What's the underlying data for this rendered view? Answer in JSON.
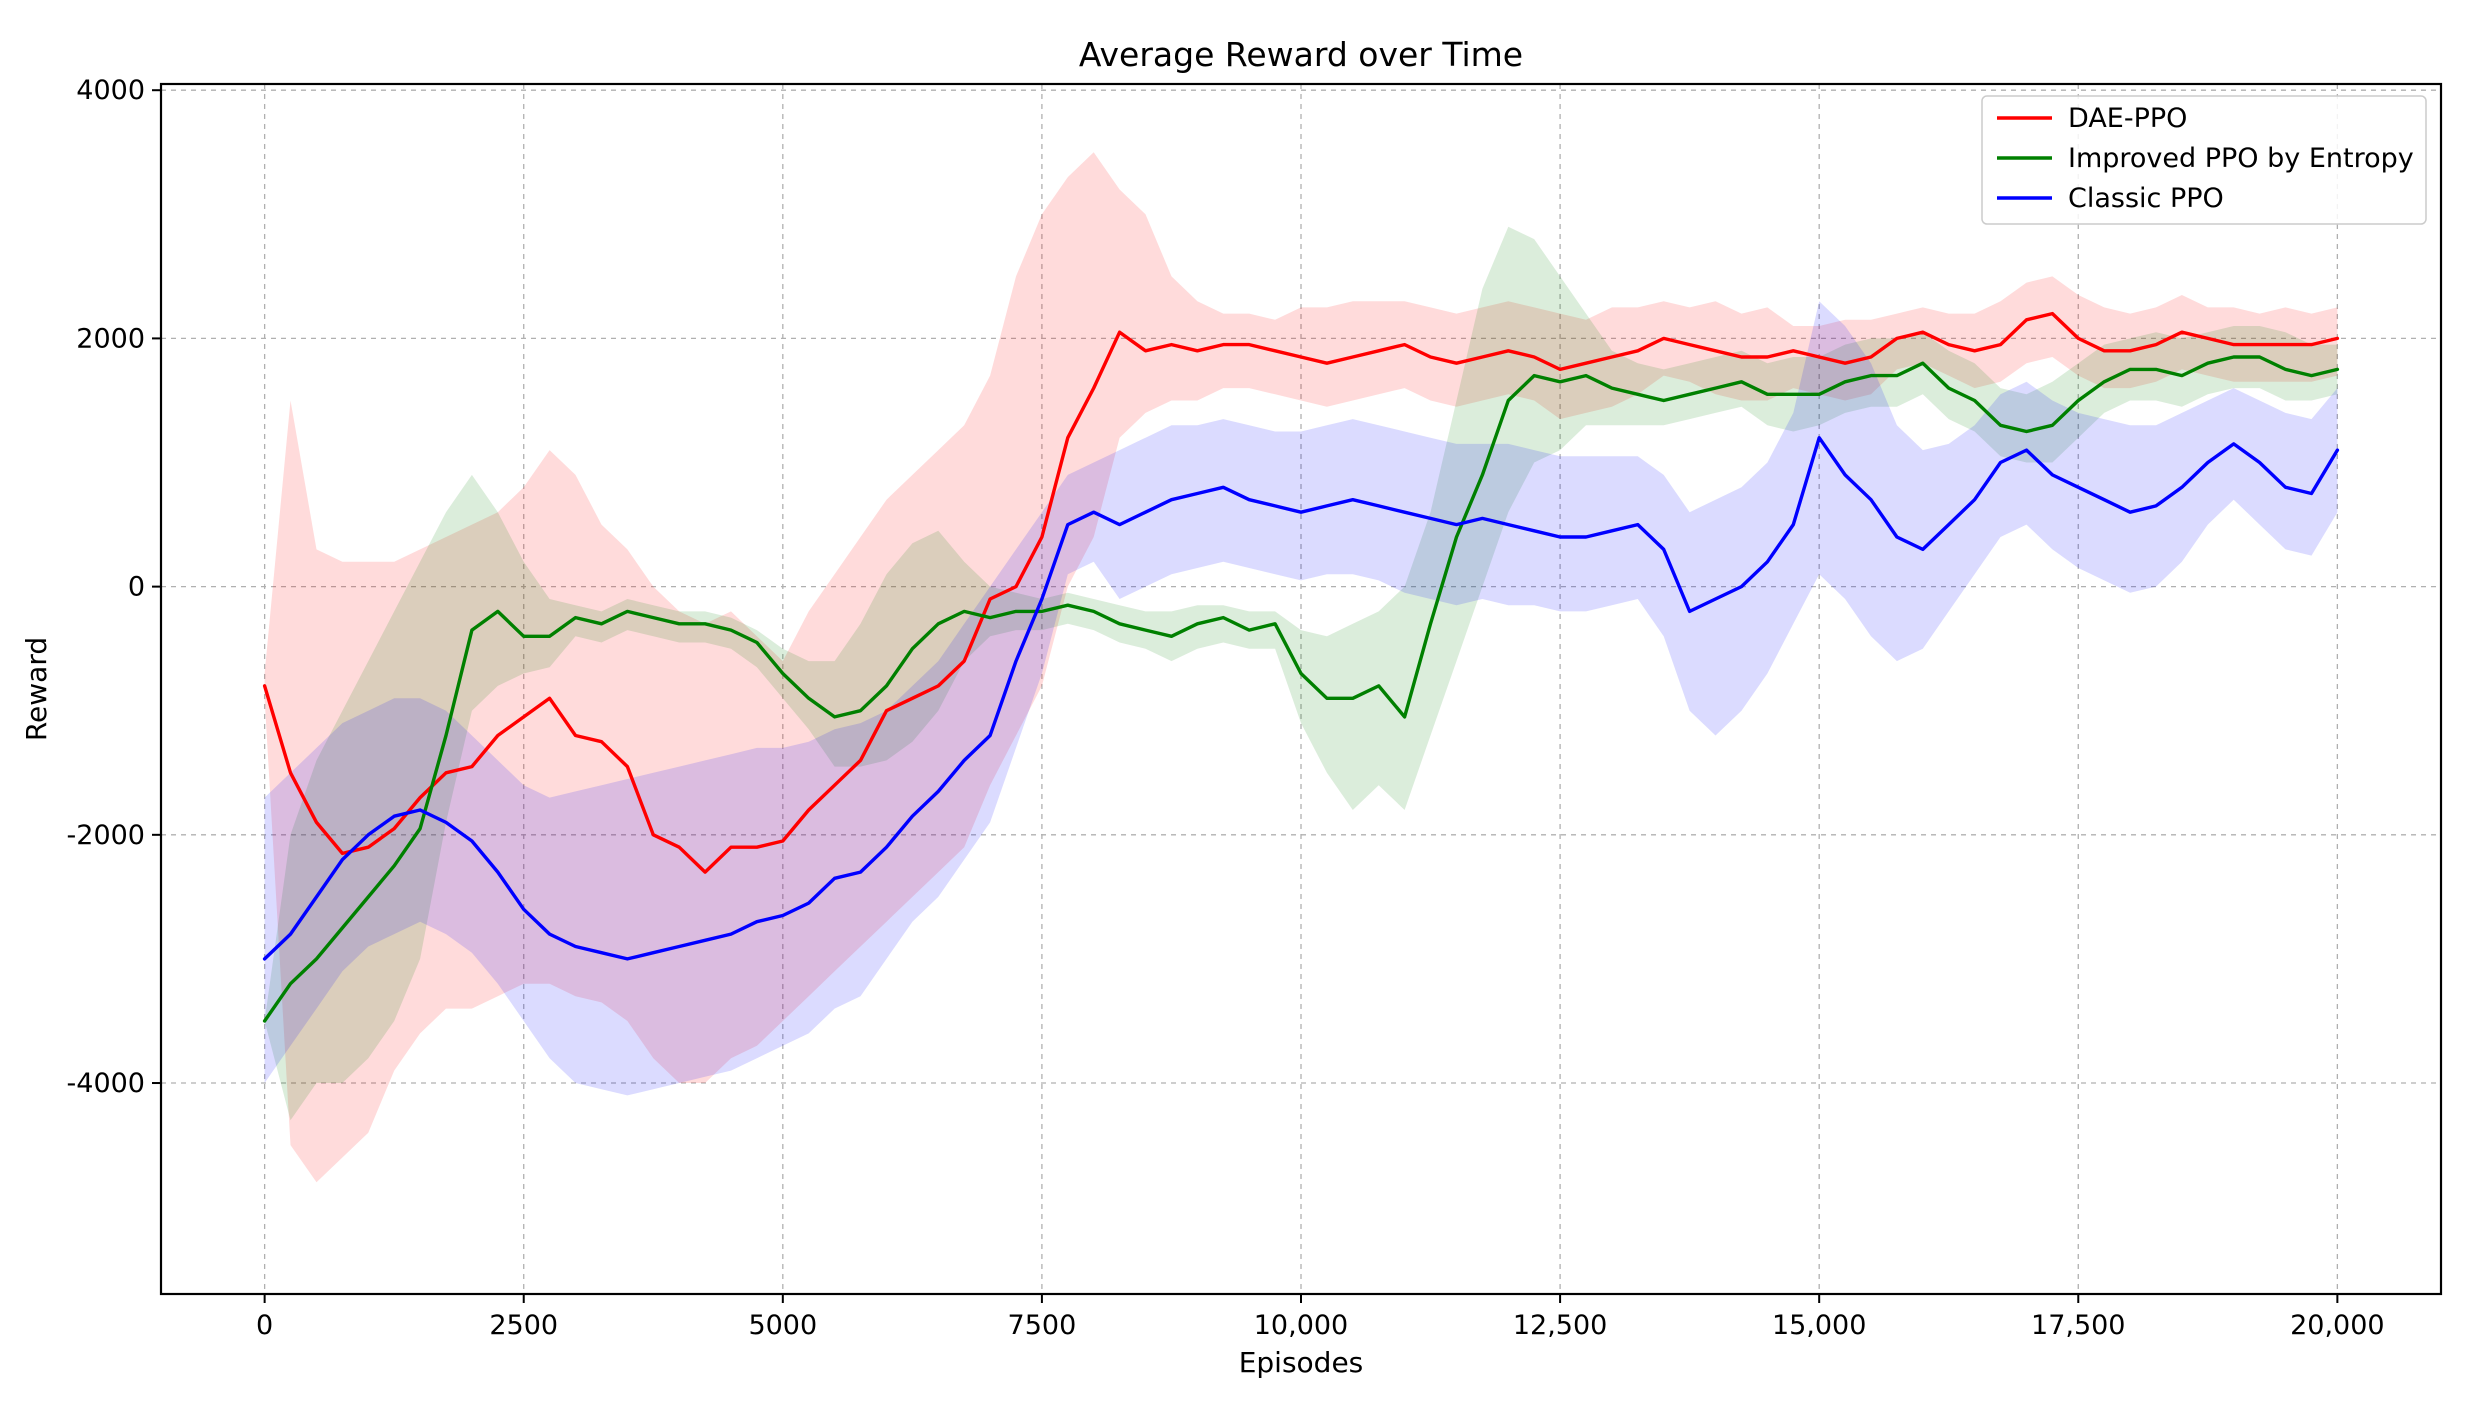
{
  "chart_data": {
    "type": "line",
    "title": "Average Reward over Time",
    "xlabel": "Episodes",
    "ylabel": "Reward",
    "xlim": [
      -1000,
      21000
    ],
    "ylim": [
      -5700,
      4050
    ],
    "x_ticks": [
      0,
      2500,
      5000,
      7500,
      10000,
      12500,
      15000,
      17500,
      20000
    ],
    "x_tick_labels": [
      "0",
      "2500",
      "5000",
      "7500",
      "10,000",
      "12,500",
      "15,000",
      "17,500",
      "20,000"
    ],
    "y_ticks": [
      4000,
      2000,
      0,
      -2000,
      -4000
    ],
    "y_tick_labels": [
      "4000",
      "2000",
      "0",
      "-2000",
      "-4000"
    ],
    "grid": true,
    "legend_position": "top-right",
    "x": [
      0,
      250,
      500,
      750,
      1000,
      1250,
      1500,
      1750,
      2000,
      2250,
      2500,
      2750,
      3000,
      3250,
      3500,
      3750,
      4000,
      4250,
      4500,
      4750,
      5000,
      5250,
      5500,
      5750,
      6000,
      6250,
      6500,
      6750,
      7000,
      7250,
      7500,
      7750,
      8000,
      8250,
      8500,
      8750,
      9000,
      9250,
      9500,
      9750,
      10000,
      10250,
      10500,
      10750,
      11000,
      11250,
      11500,
      11750,
      12000,
      12250,
      12500,
      12750,
      13000,
      13250,
      13500,
      13750,
      14000,
      14250,
      14500,
      14750,
      15000,
      15250,
      15500,
      15750,
      16000,
      16250,
      16500,
      16750,
      17000,
      17250,
      17500,
      17750,
      18000,
      18250,
      18500,
      18750,
      19000,
      19250,
      19500,
      19750,
      20000
    ],
    "series": [
      {
        "name": "DAE-PPO",
        "color": "#ff0000",
        "values": [
          -800,
          -1500,
          -1900,
          -2150,
          -2100,
          -1950,
          -1700,
          -1500,
          -1450,
          -1200,
          -1050,
          -900,
          -1200,
          -1250,
          -1450,
          -2000,
          -2100,
          -2300,
          -2100,
          -2100,
          -2050,
          -1800,
          -1600,
          -1400,
          -1000,
          -900,
          -800,
          -600,
          -100,
          0,
          400,
          1200,
          1600,
          2050,
          1900,
          1950,
          1900,
          1950,
          1950,
          1900,
          1850,
          1800,
          1850,
          1900,
          1950,
          1850,
          1800,
          1850,
          1900,
          1850,
          1750,
          1800,
          1850,
          1900,
          2000,
          1950,
          1900,
          1850,
          1850,
          1900,
          1850,
          1800,
          1850,
          2000,
          2050,
          1950,
          1900,
          1950,
          2150,
          2200,
          2000,
          1900,
          1900,
          1950,
          2050,
          2000,
          1950,
          1950,
          1950,
          1950,
          2000
        ],
        "upper": [
          -700,
          1500,
          300,
          200,
          200,
          200,
          300,
          400,
          500,
          600,
          800,
          1100,
          900,
          500,
          300,
          0,
          -200,
          -300,
          -200,
          -400,
          -600,
          -200,
          100,
          400,
          700,
          900,
          1100,
          1300,
          1700,
          2500,
          3000,
          3300,
          3500,
          3200,
          3000,
          2500,
          2300,
          2200,
          2200,
          2150,
          2250,
          2250,
          2300,
          2300,
          2300,
          2250,
          2200,
          2250,
          2300,
          2250,
          2200,
          2150,
          2250,
          2250,
          2300,
          2250,
          2300,
          2200,
          2250,
          2100,
          2100,
          2150,
          2150,
          2200,
          2250,
          2200,
          2200,
          2300,
          2450,
          2500,
          2350,
          2250,
          2200,
          2250,
          2350,
          2250,
          2250,
          2200,
          2250,
          2200,
          2250
        ],
        "lower": [
          -900,
          -4500,
          -4800,
          -4600,
          -4400,
          -3900,
          -3600,
          -3400,
          -3400,
          -3300,
          -3200,
          -3200,
          -3300,
          -3350,
          -3500,
          -3800,
          -4000,
          -4000,
          -3800,
          -3700,
          -3500,
          -3300,
          -3100,
          -2900,
          -2700,
          -2500,
          -2300,
          -2100,
          -1600,
          -1200,
          -800,
          0,
          400,
          1200,
          1400,
          1500,
          1500,
          1600,
          1600,
          1550,
          1500,
          1450,
          1500,
          1550,
          1600,
          1500,
          1450,
          1500,
          1550,
          1500,
          1350,
          1400,
          1450,
          1550,
          1700,
          1650,
          1550,
          1500,
          1500,
          1600,
          1550,
          1500,
          1550,
          1750,
          1800,
          1700,
          1600,
          1650,
          1800,
          1850,
          1700,
          1600,
          1600,
          1650,
          1750,
          1700,
          1650,
          1650,
          1650,
          1650,
          1700
        ]
      },
      {
        "name": "Improved PPO by Entropy",
        "color": "#008000",
        "values": [
          -3500,
          -3200,
          -3000,
          -2750,
          -2500,
          -2250,
          -1950,
          -1200,
          -350,
          -200,
          -400,
          -400,
          -250,
          -300,
          -200,
          -250,
          -300,
          -300,
          -350,
          -450,
          -700,
          -900,
          -1050,
          -1000,
          -800,
          -500,
          -300,
          -200,
          -250,
          -200,
          -200,
          -150,
          -200,
          -300,
          -350,
          -400,
          -300,
          -250,
          -350,
          -300,
          -700,
          -900,
          -900,
          -800,
          -1050,
          -300,
          400,
          900,
          1500,
          1700,
          1650,
          1700,
          1600,
          1550,
          1500,
          1550,
          1600,
          1650,
          1550,
          1550,
          1550,
          1650,
          1700,
          1700,
          1800,
          1600,
          1500,
          1300,
          1250,
          1300,
          1500,
          1650,
          1750,
          1750,
          1700,
          1800,
          1850,
          1850,
          1750,
          1700,
          1750
        ],
        "upper": [
          -3500,
          -2000,
          -1400,
          -1000,
          -600,
          -200,
          200,
          600,
          900,
          600,
          200,
          -100,
          -150,
          -200,
          -100,
          -150,
          -200,
          -200,
          -250,
          -350,
          -500,
          -600,
          -600,
          -300,
          100,
          350,
          450,
          200,
          0,
          -50,
          -100,
          -50,
          -100,
          -150,
          -200,
          -200,
          -150,
          -150,
          -200,
          -200,
          -350,
          -400,
          -300,
          -200,
          0,
          600,
          1500,
          2400,
          2900,
          2800,
          2500,
          2200,
          1900,
          1800,
          1750,
          1800,
          1850,
          1900,
          1800,
          1850,
          1850,
          1950,
          2000,
          2000,
          2050,
          1900,
          1800,
          1600,
          1550,
          1650,
          1800,
          1950,
          2000,
          2050,
          2000,
          2050,
          2100,
          2100,
          2050,
          1950,
          1950
        ],
        "lower": [
          -3500,
          -4300,
          -4000,
          -4000,
          -3800,
          -3500,
          -3000,
          -1900,
          -1000,
          -800,
          -700,
          -650,
          -400,
          -450,
          -350,
          -400,
          -450,
          -450,
          -500,
          -650,
          -900,
          -1150,
          -1450,
          -1450,
          -1400,
          -1250,
          -1000,
          -600,
          -400,
          -350,
          -350,
          -300,
          -350,
          -450,
          -500,
          -600,
          -500,
          -450,
          -500,
          -500,
          -1100,
          -1500,
          -1800,
          -1600,
          -1800,
          -1200,
          -600,
          0,
          600,
          1000,
          1100,
          1300,
          1300,
          1300,
          1300,
          1350,
          1400,
          1450,
          1300,
          1250,
          1300,
          1400,
          1450,
          1450,
          1550,
          1350,
          1250,
          1050,
          1000,
          1000,
          1200,
          1400,
          1500,
          1500,
          1450,
          1550,
          1600,
          1600,
          1500,
          1500,
          1550
        ]
      },
      {
        "name": "Classic PPO",
        "color": "#0000ff",
        "values": [
          -3000,
          -2800,
          -2500,
          -2200,
          -2000,
          -1850,
          -1800,
          -1900,
          -2050,
          -2300,
          -2600,
          -2800,
          -2900,
          -2950,
          -3000,
          -2950,
          -2900,
          -2850,
          -2800,
          -2700,
          -2650,
          -2550,
          -2350,
          -2300,
          -2100,
          -1850,
          -1650,
          -1400,
          -1200,
          -600,
          -100,
          500,
          600,
          500,
          600,
          700,
          750,
          800,
          700,
          650,
          600,
          650,
          700,
          650,
          600,
          550,
          500,
          550,
          500,
          450,
          400,
          400,
          450,
          500,
          300,
          -200,
          -100,
          0,
          200,
          500,
          1200,
          900,
          700,
          400,
          300,
          500,
          700,
          1000,
          1100,
          900,
          800,
          700,
          600,
          650,
          800,
          1000,
          1150,
          1000,
          800,
          750,
          1100
        ],
        "upper": [
          -1700,
          -1500,
          -1300,
          -1100,
          -1000,
          -900,
          -900,
          -1000,
          -1200,
          -1400,
          -1600,
          -1700,
          -1650,
          -1600,
          -1550,
          -1500,
          -1450,
          -1400,
          -1350,
          -1300,
          -1300,
          -1250,
          -1150,
          -1100,
          -1000,
          -800,
          -600,
          -300,
          0,
          300,
          600,
          900,
          1000,
          1100,
          1200,
          1300,
          1300,
          1350,
          1300,
          1250,
          1250,
          1300,
          1350,
          1300,
          1250,
          1200,
          1150,
          1150,
          1150,
          1100,
          1050,
          1050,
          1050,
          1050,
          900,
          600,
          700,
          800,
          1000,
          1400,
          2300,
          2100,
          1800,
          1300,
          1100,
          1150,
          1300,
          1550,
          1650,
          1500,
          1400,
          1350,
          1300,
          1300,
          1400,
          1500,
          1600,
          1500,
          1400,
          1350,
          1600
        ],
        "lower": [
          -4000,
          -3700,
          -3400,
          -3100,
          -2900,
          -2800,
          -2700,
          -2800,
          -2950,
          -3200,
          -3500,
          -3800,
          -4000,
          -4050,
          -4100,
          -4050,
          -4000,
          -3950,
          -3900,
          -3800,
          -3700,
          -3600,
          -3400,
          -3300,
          -3000,
          -2700,
          -2500,
          -2200,
          -1900,
          -1300,
          -700,
          100,
          200,
          -100,
          0,
          100,
          150,
          200,
          150,
          100,
          50,
          100,
          100,
          50,
          -50,
          -100,
          -150,
          -100,
          -150,
          -150,
          -200,
          -200,
          -150,
          -100,
          -400,
          -1000,
          -1200,
          -1000,
          -700,
          -300,
          100,
          -100,
          -400,
          -600,
          -500,
          -200,
          100,
          400,
          500,
          300,
          150,
          50,
          -50,
          0,
          200,
          500,
          700,
          500,
          300,
          250,
          600
        ]
      }
    ]
  }
}
